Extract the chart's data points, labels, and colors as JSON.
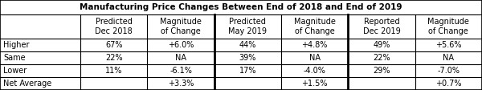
{
  "title": "Manufacturing Price Changes Between End of 2018 and End of 2019",
  "col_headers": [
    "Predicted\nDec 2018",
    "Magnitude\nof Change",
    "Predicted\nMay 2019",
    "Magnitude\nof Change",
    "Reported\nDec 2019",
    "Magnitude\nof Change"
  ],
  "row_labels": [
    "Higher",
    "Same",
    "Lower",
    "Net Average"
  ],
  "table_data": [
    [
      "67%",
      "+6.0%",
      "44%",
      "+4.8%",
      "49%",
      "+5.6%"
    ],
    [
      "22%",
      "NA",
      "39%",
      "NA",
      "22%",
      "NA"
    ],
    [
      "11%",
      "-6.1%",
      "17%",
      "-4.0%",
      "29%",
      "-7.0%"
    ],
    [
      "",
      "+3.3%",
      "",
      "+1.5%",
      "",
      "+0.7%"
    ]
  ],
  "bg_color": "#ffffff",
  "title_fontsize": 7.5,
  "cell_fontsize": 7.0,
  "title_bold": true,
  "thick_divider_cols": [
    3,
    5
  ]
}
